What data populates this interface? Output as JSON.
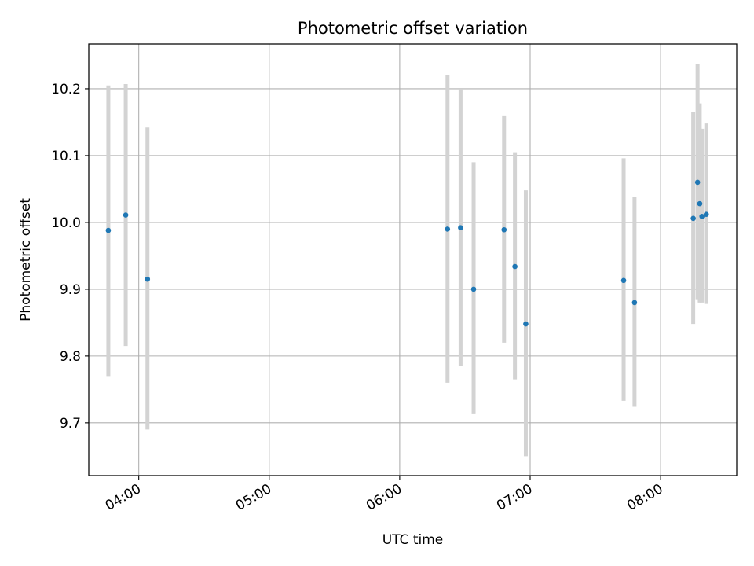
{
  "chart_data": {
    "type": "scatter",
    "title": "Photometric offset variation",
    "xlabel": "UTC time",
    "ylabel": "Photometric offset",
    "x_axis": "time",
    "xlim": [
      "03:37",
      "08:35"
    ],
    "ylim": [
      9.621,
      10.267
    ],
    "x_ticks": [
      "04:00",
      "05:00",
      "06:00",
      "07:00",
      "08:00"
    ],
    "y_ticks": [
      9.7,
      9.8,
      9.9,
      10.0,
      10.1,
      10.2
    ],
    "y_tick_labels": [
      "9.7",
      "9.8",
      "9.9",
      "10.0",
      "10.1",
      "10.2"
    ],
    "grid": true,
    "colors": {
      "points": "#1f77b4",
      "error_bars": "#d3d3d3",
      "grid": "#b0b0b0"
    },
    "series": [
      {
        "error_bar_style": "vertical gray bars",
        "points": [
          {
            "x": "03:46",
            "y": 9.988,
            "ylow": 9.77,
            "yhigh": 10.205
          },
          {
            "x": "03:54",
            "y": 10.011,
            "ylow": 9.815,
            "yhigh": 10.207
          },
          {
            "x": "04:04",
            "y": 9.915,
            "ylow": 9.69,
            "yhigh": 10.142
          },
          {
            "x": "06:22",
            "y": 9.99,
            "ylow": 9.76,
            "yhigh": 10.22
          },
          {
            "x": "06:28",
            "y": 9.992,
            "ylow": 9.785,
            "yhigh": 10.2
          },
          {
            "x": "06:34",
            "y": 9.9,
            "ylow": 9.713,
            "yhigh": 10.09
          },
          {
            "x": "06:48",
            "y": 9.989,
            "ylow": 9.82,
            "yhigh": 10.16
          },
          {
            "x": "06:53",
            "y": 9.934,
            "ylow": 9.765,
            "yhigh": 10.105
          },
          {
            "x": "06:58",
            "y": 9.848,
            "ylow": 9.65,
            "yhigh": 10.048
          },
          {
            "x": "07:43",
            "y": 9.913,
            "ylow": 9.733,
            "yhigh": 10.096
          },
          {
            "x": "07:48",
            "y": 9.88,
            "ylow": 9.724,
            "yhigh": 10.038
          },
          {
            "x": "08:15",
            "y": 10.006,
            "ylow": 9.848,
            "yhigh": 10.165
          },
          {
            "x": "08:17",
            "y": 10.06,
            "ylow": 9.885,
            "yhigh": 10.237
          },
          {
            "x": "08:18",
            "y": 10.028,
            "ylow": 9.88,
            "yhigh": 10.178
          },
          {
            "x": "08:19",
            "y": 10.009,
            "ylow": 9.88,
            "yhigh": 10.14
          },
          {
            "x": "08:21",
            "y": 10.012,
            "ylow": 9.878,
            "yhigh": 10.148
          }
        ]
      }
    ]
  }
}
